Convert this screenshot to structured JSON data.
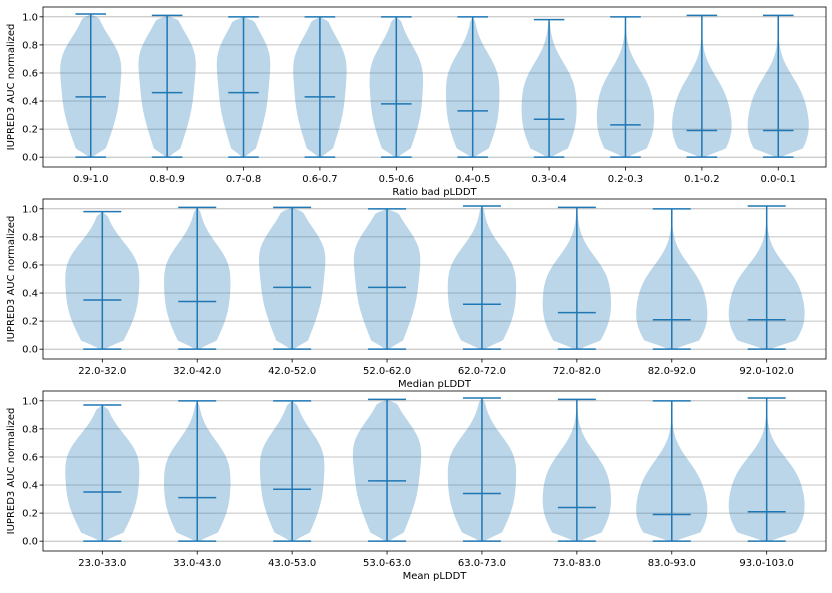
{
  "chart_data": [
    {
      "type": "violin",
      "xlabel": "Ratio bad pLDDT",
      "ylabel": "IUPRED3 AUC normalized",
      "ylim": [
        0,
        1
      ],
      "yticks": [
        "0.0",
        "0.2",
        "0.4",
        "0.6",
        "0.8",
        "1.0"
      ],
      "grid": "horizontal",
      "color": "#1f77b4",
      "categories": [
        "0.9-1.0",
        "0.8-0.9",
        "0.7-0.8",
        "0.6-0.7",
        "0.5-0.6",
        "0.4-0.5",
        "0.3-0.4",
        "0.2-0.3",
        "0.1-0.2",
        "0.0-0.1"
      ],
      "min": [
        0,
        0,
        0,
        0,
        0,
        0,
        0,
        0,
        0,
        0
      ],
      "max": [
        1.02,
        1.01,
        1.0,
        1.0,
        1.0,
        1.0,
        0.98,
        1.0,
        1.01,
        1.01
      ],
      "median": [
        0.43,
        0.46,
        0.46,
        0.43,
        0.38,
        0.33,
        0.27,
        0.23,
        0.19,
        0.19
      ],
      "peak_width": [
        0.8,
        0.75,
        0.7,
        0.7,
        0.7,
        0.7,
        0.72,
        0.75,
        0.78,
        0.8
      ]
    },
    {
      "type": "violin",
      "xlabel": "Median pLDDT",
      "ylabel": "IUPRED3 AUC normalized",
      "ylim": [
        0,
        1
      ],
      "yticks": [
        "0.0",
        "0.2",
        "0.4",
        "0.6",
        "0.8",
        "1.0"
      ],
      "grid": "horizontal",
      "color": "#1f77b4",
      "categories": [
        "22.0-32.0",
        "32.0-42.0",
        "42.0-52.0",
        "52.0-62.0",
        "62.0-72.0",
        "72.0-82.0",
        "82.0-92.0",
        "92.0-102.0"
      ],
      "min": [
        0,
        0,
        0,
        0,
        0,
        0,
        0,
        0
      ],
      "max": [
        0.98,
        1.01,
        1.01,
        1.0,
        1.02,
        1.01,
        1.0,
        1.02
      ],
      "median": [
        0.35,
        0.34,
        0.44,
        0.44,
        0.32,
        0.26,
        0.21,
        0.21
      ],
      "peak_width": [
        0.78,
        0.7,
        0.7,
        0.7,
        0.72,
        0.72,
        0.75,
        0.8
      ]
    },
    {
      "type": "violin",
      "xlabel": "Mean pLDDT",
      "ylabel": "IUPRED3 AUC normalized",
      "ylim": [
        0,
        1
      ],
      "yticks": [
        "0.0",
        "0.2",
        "0.4",
        "0.6",
        "0.8",
        "1.0"
      ],
      "grid": "horizontal",
      "color": "#1f77b4",
      "categories": [
        "23.0-33.0",
        "33.0-43.0",
        "43.0-53.0",
        "53.0-63.0",
        "63.0-73.0",
        "73.0-83.0",
        "83.0-93.0",
        "93.0-103.0"
      ],
      "min": [
        0,
        0,
        0,
        0,
        0,
        0,
        0,
        0
      ],
      "max": [
        0.97,
        1.0,
        1.0,
        1.01,
        1.02,
        1.01,
        1.0,
        1.02
      ],
      "median": [
        0.35,
        0.31,
        0.37,
        0.43,
        0.34,
        0.24,
        0.19,
        0.21
      ],
      "peak_width": [
        0.78,
        0.7,
        0.68,
        0.72,
        0.72,
        0.72,
        0.75,
        0.8
      ]
    }
  ]
}
